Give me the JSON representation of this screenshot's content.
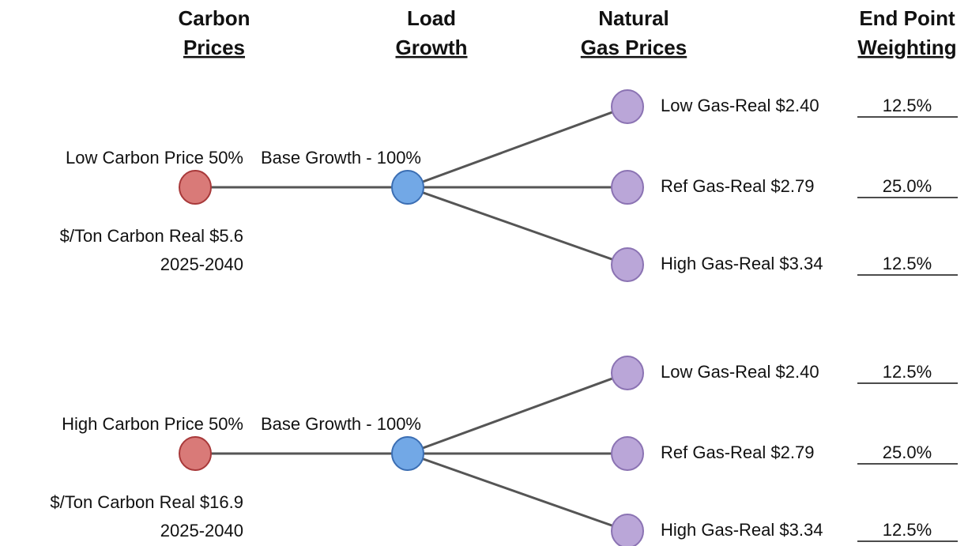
{
  "headers": [
    {
      "line1": "Carbon",
      "line2": "Prices"
    },
    {
      "line1": "Load",
      "line2": "Growth"
    },
    {
      "line1": "Natural",
      "line2": "Gas Prices"
    },
    {
      "line1": "End Point",
      "line2": "Weighting"
    }
  ],
  "branches": [
    {
      "carbon": "Low Carbon Price 50%",
      "detail": [
        "$/Ton Carbon Real $5.6",
        "2025-2040"
      ],
      "growth": "Base Growth - 100%",
      "gas": [
        {
          "label": "Low Gas-Real $2.40",
          "weight": "12.5%"
        },
        {
          "label": "Ref Gas-Real $2.79",
          "weight": "25.0%"
        },
        {
          "label": "High Gas-Real $3.34",
          "weight": "12.5%"
        }
      ]
    },
    {
      "carbon": "High Carbon Price 50%",
      "detail": [
        "$/Ton Carbon Real $16.9",
        "2025-2040"
      ],
      "growth": "Base Growth - 100%",
      "gas": [
        {
          "label": "Low Gas-Real $2.40",
          "weight": "12.5%"
        },
        {
          "label": "Ref Gas-Real $2.79",
          "weight": "25.0%"
        },
        {
          "label": "High Gas-Real $3.34",
          "weight": "12.5%"
        }
      ]
    }
  ]
}
